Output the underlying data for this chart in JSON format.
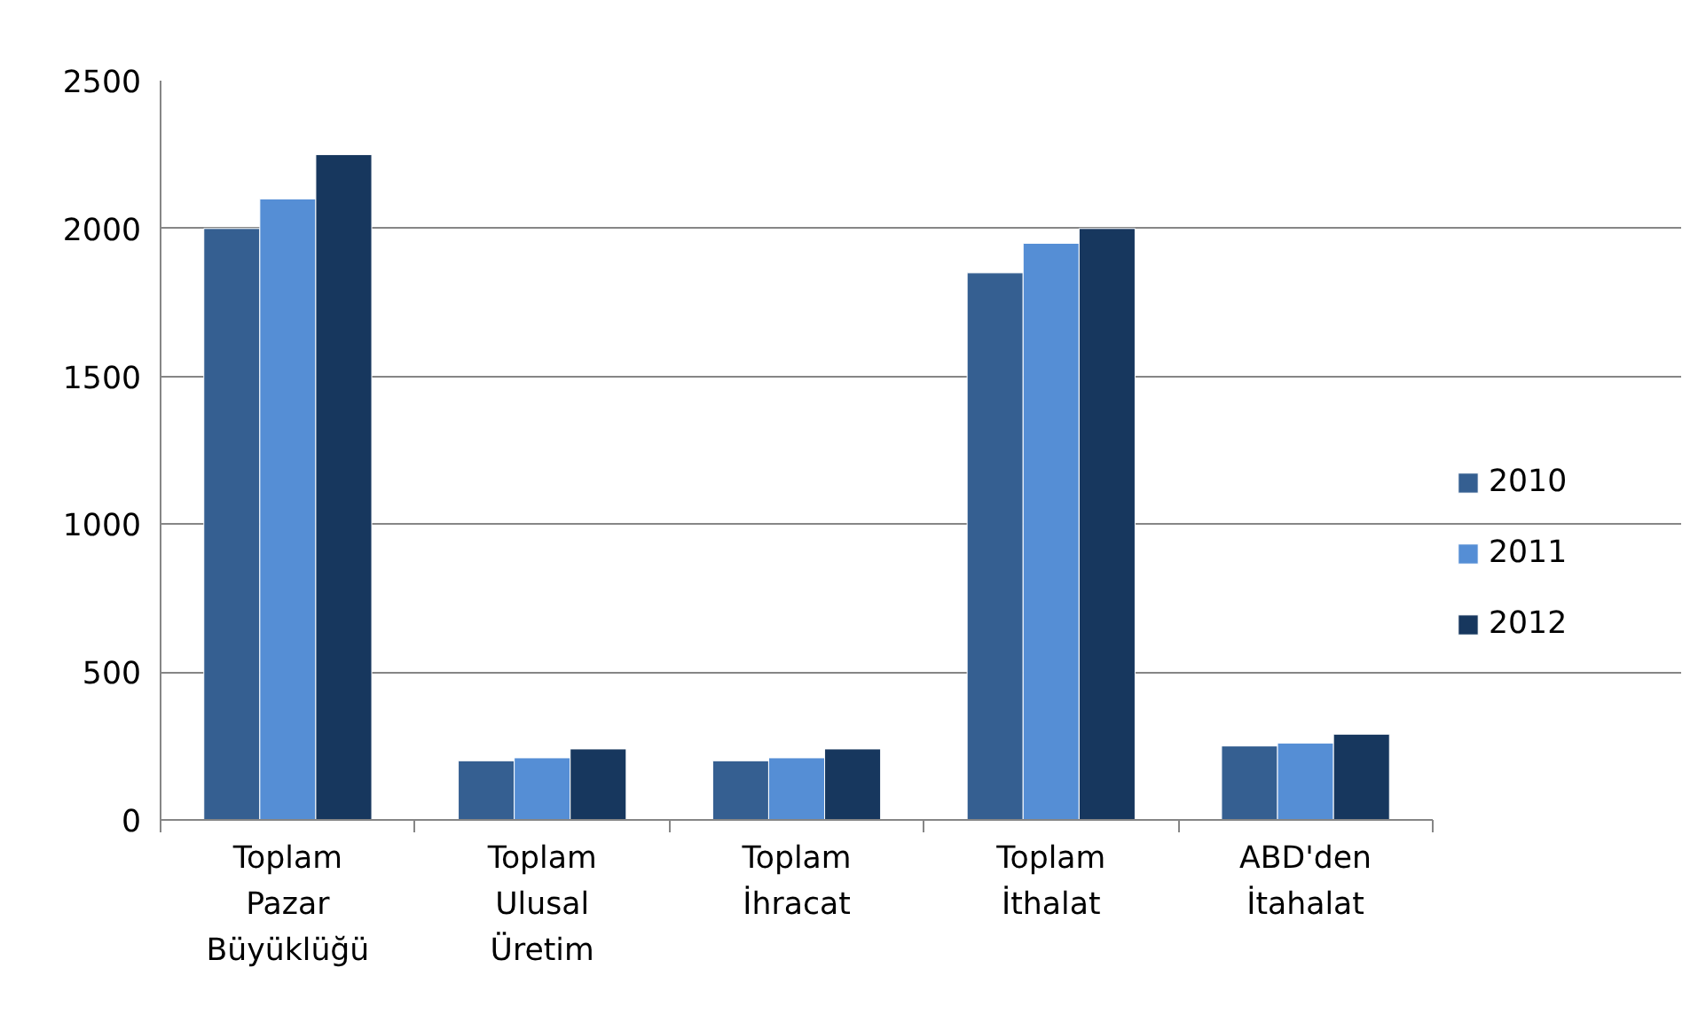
{
  "chart_data": {
    "type": "bar",
    "categories": [
      "Toplam Pazar Büyüklüğü",
      "Toplam Ulusal Üretim",
      "Toplam İhracat",
      "Toplam İthalat",
      "ABD'den İtahalat"
    ],
    "series": [
      {
        "name": "2010",
        "color": "#355f91",
        "values": [
          2000,
          200,
          200,
          1850,
          250
        ]
      },
      {
        "name": "2011",
        "color": "#558ed5",
        "values": [
          2100,
          210,
          210,
          1950,
          260
        ]
      },
      {
        "name": "2012",
        "color": "#17375e",
        "values": [
          2250,
          240,
          240,
          2000,
          290
        ]
      }
    ],
    "ylim": [
      0,
      2500
    ],
    "yticks": [
      0,
      500,
      1000,
      1500,
      2000,
      2500
    ],
    "grid": "y",
    "legend": "right"
  }
}
